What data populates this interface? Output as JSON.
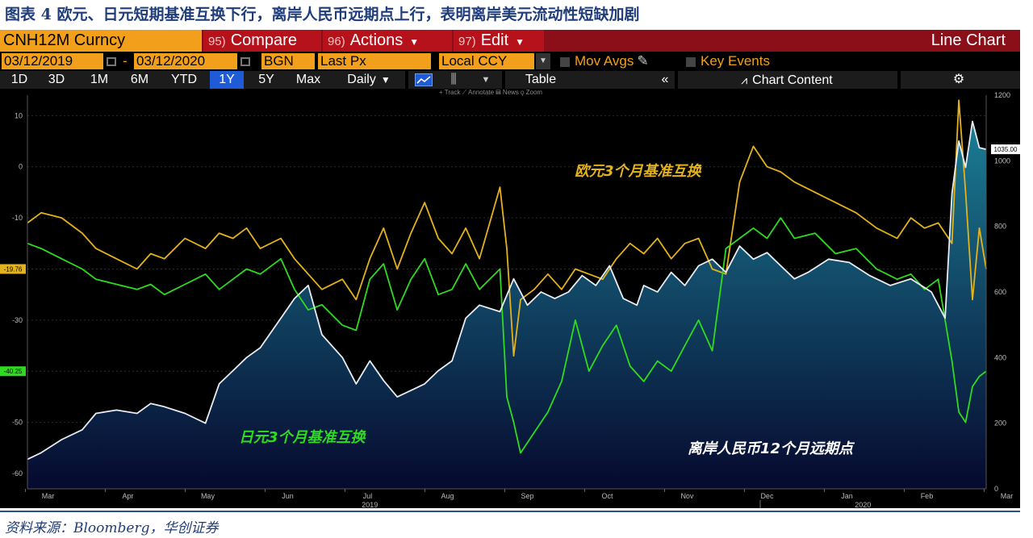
{
  "figure_title": "图表 4 欧元、日元短期基准互换下行，离岸人民币远期点上行，表明离岸美元流动性短缺加剧",
  "source_note": "资料来源：Bloomberg，华创证券",
  "toolbar": {
    "ticker": "CNH12M Curncy",
    "compare": {
      "num": "95)",
      "label": "Compare"
    },
    "actions": {
      "num": "96)",
      "label": "Actions"
    },
    "edit": {
      "num": "97)",
      "label": "Edit"
    },
    "chart_type": "Line Chart",
    "start_date": "03/12/2019",
    "dash": "-",
    "end_date": "03/12/2020",
    "source": "BGN",
    "field": "Last Px",
    "currency": "Local CCY",
    "mov_avgs": "Mov Avgs",
    "key_events": "Key Events",
    "periods": [
      "1D",
      "3D",
      "1M",
      "6M",
      "YTD",
      "1Y",
      "5Y",
      "Max"
    ],
    "active_period": "1Y",
    "frequency": "Daily",
    "table_label": "Table",
    "chart_content": "Chart Content",
    "mini_tools": "+ Track ⟋ Annotate ▤ News ⚲ Zoom"
  },
  "colors": {
    "eur": "#e3b21c",
    "jpy": "#2edb1f",
    "cnh_line": "#e8ecf2",
    "cnh_fill_top": "#1b7d95",
    "cnh_fill_bottom": "#06092e",
    "background": "#000000",
    "toolbar_red": "#8a0f18",
    "toolbar_orange": "#f2a01c"
  },
  "chart_data": {
    "type": "line",
    "x_months": [
      "Mar",
      "Apr",
      "May",
      "Jun",
      "Jul",
      "Aug",
      "Sep",
      "Oct",
      "Nov",
      "Dec",
      "Jan",
      "Feb",
      "Mar"
    ],
    "year_labels": [
      "2019",
      "2020"
    ],
    "left_axis": {
      "ticks": [
        10,
        0,
        -10,
        -20,
        -30,
        -40,
        -50,
        -60
      ],
      "ylim": [
        -63,
        14
      ]
    },
    "right_axis": {
      "ticks": [
        1200,
        1000,
        800,
        600,
        400,
        200,
        0
      ],
      "ylim": [
        0,
        1200
      ]
    },
    "series": [
      {
        "name": "欧元3个月基准互换",
        "axis": "left",
        "last_value": "-19.76",
        "points": [
          [
            0,
            -11
          ],
          [
            0.2,
            -9
          ],
          [
            0.5,
            -10
          ],
          [
            0.8,
            -13
          ],
          [
            1.0,
            -16
          ],
          [
            1.3,
            -18
          ],
          [
            1.6,
            -20
          ],
          [
            1.8,
            -17
          ],
          [
            2.0,
            -18
          ],
          [
            2.3,
            -14
          ],
          [
            2.6,
            -16
          ],
          [
            2.8,
            -13
          ],
          [
            3.0,
            -14
          ],
          [
            3.2,
            -12
          ],
          [
            3.4,
            -16
          ],
          [
            3.7,
            -14
          ],
          [
            3.9,
            -18
          ],
          [
            4.1,
            -21
          ],
          [
            4.3,
            -24
          ],
          [
            4.6,
            -22
          ],
          [
            4.8,
            -26
          ],
          [
            5.0,
            -18
          ],
          [
            5.2,
            -12
          ],
          [
            5.4,
            -20
          ],
          [
            5.6,
            -13
          ],
          [
            5.8,
            -7
          ],
          [
            6.0,
            -14
          ],
          [
            6.2,
            -17
          ],
          [
            6.4,
            -12
          ],
          [
            6.6,
            -18
          ],
          [
            6.9,
            -4
          ],
          [
            7.0,
            -16
          ],
          [
            7.1,
            -37
          ],
          [
            7.2,
            -26
          ],
          [
            7.4,
            -24
          ],
          [
            7.6,
            -21
          ],
          [
            7.8,
            -24
          ],
          [
            8.0,
            -20
          ],
          [
            8.2,
            -21
          ],
          [
            8.4,
            -22
          ],
          [
            8.6,
            -18
          ],
          [
            8.8,
            -15
          ],
          [
            9.0,
            -17
          ],
          [
            9.2,
            -14
          ],
          [
            9.4,
            -18
          ],
          [
            9.6,
            -15
          ],
          [
            9.8,
            -14
          ],
          [
            10.0,
            -20
          ],
          [
            10.2,
            -21
          ],
          [
            10.4,
            -3
          ],
          [
            10.6,
            4
          ],
          [
            10.8,
            0
          ],
          [
            11.0,
            -1
          ],
          [
            11.2,
            -3
          ],
          [
            11.5,
            -5
          ],
          [
            11.8,
            -7
          ],
          [
            12.1,
            -9
          ],
          [
            12.4,
            -12
          ],
          [
            12.7,
            -14
          ],
          [
            12.9,
            -10
          ],
          [
            13.1,
            -12
          ],
          [
            13.3,
            -11
          ],
          [
            13.5,
            -15
          ],
          [
            13.6,
            13
          ],
          [
            13.7,
            -5
          ],
          [
            13.8,
            -26
          ],
          [
            13.9,
            -12
          ],
          [
            14.0,
            -20
          ]
        ]
      },
      {
        "name": "日元3个月基准互换",
        "axis": "left",
        "last_value": "-40.25",
        "points": [
          [
            0,
            -15
          ],
          [
            0.2,
            -16
          ],
          [
            0.5,
            -18
          ],
          [
            0.8,
            -20
          ],
          [
            1.0,
            -22
          ],
          [
            1.3,
            -23
          ],
          [
            1.6,
            -24
          ],
          [
            1.8,
            -23
          ],
          [
            2.0,
            -25
          ],
          [
            2.3,
            -23
          ],
          [
            2.6,
            -21
          ],
          [
            2.8,
            -24
          ],
          [
            3.0,
            -22
          ],
          [
            3.2,
            -20
          ],
          [
            3.4,
            -21
          ],
          [
            3.7,
            -18
          ],
          [
            3.9,
            -24
          ],
          [
            4.1,
            -28
          ],
          [
            4.3,
            -27
          ],
          [
            4.6,
            -31
          ],
          [
            4.8,
            -32
          ],
          [
            5.0,
            -22
          ],
          [
            5.2,
            -19
          ],
          [
            5.4,
            -28
          ],
          [
            5.6,
            -22
          ],
          [
            5.8,
            -18
          ],
          [
            6.0,
            -25
          ],
          [
            6.2,
            -24
          ],
          [
            6.4,
            -19
          ],
          [
            6.6,
            -24
          ],
          [
            6.9,
            -20
          ],
          [
            7.0,
            -45
          ],
          [
            7.1,
            -50
          ],
          [
            7.2,
            -56
          ],
          [
            7.4,
            -52
          ],
          [
            7.6,
            -48
          ],
          [
            7.8,
            -42
          ],
          [
            8.0,
            -30
          ],
          [
            8.2,
            -40
          ],
          [
            8.4,
            -35
          ],
          [
            8.6,
            -31
          ],
          [
            8.8,
            -39
          ],
          [
            9.0,
            -42
          ],
          [
            9.2,
            -38
          ],
          [
            9.4,
            -40
          ],
          [
            9.6,
            -35
          ],
          [
            9.8,
            -30
          ],
          [
            10.0,
            -36
          ],
          [
            10.2,
            -16
          ],
          [
            10.4,
            -14
          ],
          [
            10.6,
            -12
          ],
          [
            10.8,
            -14
          ],
          [
            11.0,
            -10
          ],
          [
            11.2,
            -14
          ],
          [
            11.5,
            -13
          ],
          [
            11.8,
            -17
          ],
          [
            12.1,
            -16
          ],
          [
            12.4,
            -20
          ],
          [
            12.7,
            -22
          ],
          [
            12.9,
            -21
          ],
          [
            13.1,
            -24
          ],
          [
            13.3,
            -22
          ],
          [
            13.5,
            -38
          ],
          [
            13.6,
            -48
          ],
          [
            13.7,
            -50
          ],
          [
            13.8,
            -43
          ],
          [
            13.9,
            -41
          ],
          [
            14.0,
            -40
          ]
        ]
      },
      {
        "name": "离岸人民币12个月远期点",
        "axis": "right",
        "last_value": "1035.00",
        "points": [
          [
            0,
            90
          ],
          [
            0.2,
            110
          ],
          [
            0.5,
            150
          ],
          [
            0.8,
            180
          ],
          [
            1.0,
            230
          ],
          [
            1.3,
            240
          ],
          [
            1.6,
            230
          ],
          [
            1.8,
            260
          ],
          [
            2.0,
            250
          ],
          [
            2.3,
            230
          ],
          [
            2.6,
            200
          ],
          [
            2.8,
            320
          ],
          [
            3.0,
            360
          ],
          [
            3.2,
            400
          ],
          [
            3.4,
            430
          ],
          [
            3.7,
            520
          ],
          [
            3.9,
            580
          ],
          [
            4.1,
            620
          ],
          [
            4.3,
            470
          ],
          [
            4.6,
            400
          ],
          [
            4.8,
            320
          ],
          [
            5.0,
            390
          ],
          [
            5.2,
            330
          ],
          [
            5.4,
            280
          ],
          [
            5.6,
            300
          ],
          [
            5.8,
            320
          ],
          [
            6.0,
            360
          ],
          [
            6.2,
            390
          ],
          [
            6.4,
            520
          ],
          [
            6.6,
            560
          ],
          [
            6.9,
            540
          ],
          [
            7.1,
            640
          ],
          [
            7.3,
            560
          ],
          [
            7.5,
            600
          ],
          [
            7.7,
            580
          ],
          [
            7.9,
            600
          ],
          [
            8.1,
            650
          ],
          [
            8.3,
            620
          ],
          [
            8.5,
            680
          ],
          [
            8.7,
            580
          ],
          [
            8.9,
            560
          ],
          [
            9.0,
            620
          ],
          [
            9.2,
            600
          ],
          [
            9.4,
            660
          ],
          [
            9.6,
            620
          ],
          [
            9.8,
            680
          ],
          [
            10.0,
            700
          ],
          [
            10.2,
            660
          ],
          [
            10.4,
            740
          ],
          [
            10.6,
            700
          ],
          [
            10.8,
            720
          ],
          [
            11.0,
            680
          ],
          [
            11.2,
            640
          ],
          [
            11.4,
            660
          ],
          [
            11.7,
            700
          ],
          [
            12.0,
            690
          ],
          [
            12.3,
            650
          ],
          [
            12.6,
            620
          ],
          [
            12.9,
            640
          ],
          [
            13.2,
            600
          ],
          [
            13.4,
            520
          ],
          [
            13.5,
            900
          ],
          [
            13.6,
            1060
          ],
          [
            13.7,
            980
          ],
          [
            13.8,
            1120
          ],
          [
            13.9,
            1040
          ],
          [
            14.0,
            1035
          ]
        ]
      }
    ],
    "annotations": [
      {
        "text": "欧元3个月基准互换",
        "series": "eur"
      },
      {
        "text": "日元3个月基准互换",
        "series": "jpy"
      },
      {
        "text": "离岸人民币12个月远期点",
        "series": "cnh"
      }
    ]
  }
}
